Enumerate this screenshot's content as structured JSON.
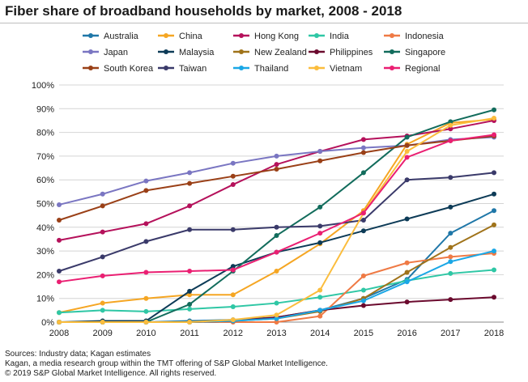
{
  "title": "Fiber share of broadband households by market, 2008 - 2018",
  "source_lines": [
    "Sources: Industry data; Kagan estimates",
    "Kagan, a media research group within the TMT offering of S&P Global Market Intelligence.",
    "© 2019 S&P Global Market Intelligence. All rights reserved."
  ],
  "chart_data": {
    "type": "line",
    "title": "Fiber share of broadband households by market, 2008 - 2018",
    "xlabel": "",
    "ylabel": "",
    "x": [
      "2008",
      "2009",
      "2010",
      "2011",
      "2012",
      "2013",
      "2014",
      "2015",
      "2016",
      "2017",
      "2018"
    ],
    "ylim": [
      0,
      100
    ],
    "yticks": [
      0,
      10,
      20,
      30,
      40,
      50,
      60,
      70,
      80,
      90,
      100
    ],
    "ytick_labels": [
      "0%",
      "10%",
      "20%",
      "30%",
      "40%",
      "50%",
      "60%",
      "70%",
      "80%",
      "90%",
      "100%"
    ],
    "grid": "horizontal",
    "legend": "top",
    "series": [
      {
        "name": "Australia",
        "color": "#1f77a8",
        "values": [
          0,
          0,
          0,
          0.5,
          1,
          2,
          5,
          10,
          18,
          37.5,
          47
        ]
      },
      {
        "name": "China",
        "color": "#f5a623",
        "values": [
          4,
          8,
          10,
          11.5,
          11.5,
          21.5,
          33,
          47,
          75,
          84,
          85.5
        ]
      },
      {
        "name": "Hong Kong",
        "color": "#b5115b",
        "values": [
          34.5,
          38,
          41.5,
          49,
          58,
          66.5,
          72,
          77,
          78.5,
          81.5,
          85
        ]
      },
      {
        "name": "India",
        "color": "#2fc7a5",
        "values": [
          4,
          5,
          4.5,
          5.5,
          6.5,
          8,
          10.5,
          13.5,
          17.5,
          20.5,
          22
        ]
      },
      {
        "name": "Indonesia",
        "color": "#ef7a45",
        "values": [
          0,
          0,
          0,
          0,
          0,
          0,
          2.5,
          19.5,
          25,
          27.5,
          29
        ]
      },
      {
        "name": "Japan",
        "color": "#7a76c2",
        "values": [
          49.5,
          54,
          59.5,
          63,
          67,
          70,
          72,
          73.5,
          74.5,
          77,
          78
        ]
      },
      {
        "name": "Malaysia",
        "color": "#0d3b57",
        "values": [
          0,
          0.5,
          0.5,
          13,
          23.5,
          29.5,
          33.5,
          38.5,
          43.5,
          48.5,
          54
        ]
      },
      {
        "name": "New Zealand",
        "color": "#a0731a",
        "values": [
          0,
          0,
          0,
          0,
          0.5,
          1.5,
          4.5,
          10,
          21,
          31.5,
          41
        ]
      },
      {
        "name": "Philippines",
        "color": "#6b0a2e",
        "values": [
          0,
          0,
          0,
          0,
          0.5,
          2,
          5,
          7,
          8.5,
          9.5,
          10.5
        ]
      },
      {
        "name": "Singapore",
        "color": "#126c5c",
        "values": [
          0,
          0,
          0,
          7.5,
          21.5,
          36.5,
          48.5,
          63,
          78,
          84.5,
          89.5
        ]
      },
      {
        "name": "South Korea",
        "color": "#9a4017",
        "values": [
          43,
          49,
          55.5,
          58.5,
          61.5,
          64.5,
          68,
          71.5,
          74.5,
          76.5,
          78.5
        ]
      },
      {
        "name": "Taiwan",
        "color": "#3a3a6a",
        "values": [
          21.5,
          27.5,
          34,
          39,
          39,
          40,
          40.5,
          43,
          60,
          61,
          63
        ]
      },
      {
        "name": "Thailand",
        "color": "#1aa7e6",
        "values": [
          0,
          0,
          0,
          0,
          0.5,
          1.5,
          5,
          9,
          17,
          25.5,
          30
        ]
      },
      {
        "name": "Vietnam",
        "color": "#fbbd3d",
        "values": [
          0,
          0,
          0,
          0,
          1,
          3,
          13.5,
          46,
          72,
          83,
          86
        ]
      },
      {
        "name": "Regional",
        "color": "#ea1f72",
        "values": [
          17,
          19.5,
          21,
          21.5,
          22,
          29.5,
          37.5,
          46,
          69.5,
          76.5,
          79
        ]
      }
    ]
  }
}
